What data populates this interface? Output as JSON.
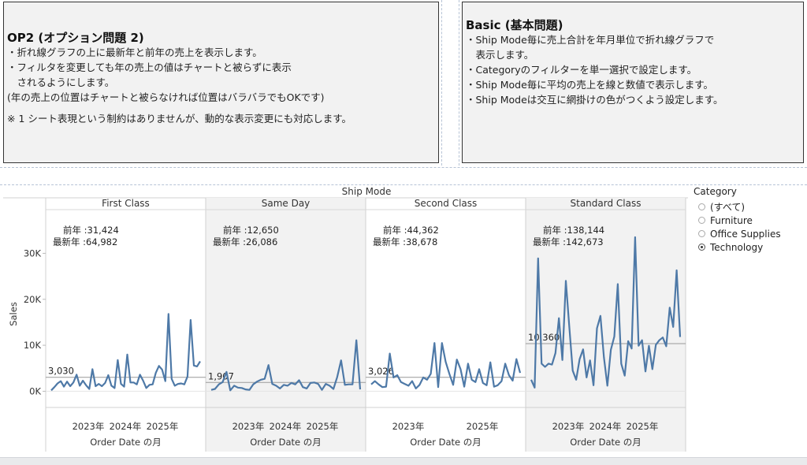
{
  "notes": {
    "op2": {
      "title": "OP2 (オプション問題 2)",
      "lines": [
        "・折れ線グラフの上に最新年と前年の売上を表示します。",
        "・フィルタを変更しても年の売上の値はチャートと被らずに表示",
        "　されるようにします。",
        "(年の売上の位置はチャートと被らなければ位置はバラバラでもOKです)"
      ],
      "footnote": "※ 1 シート表現という制約はありませんが、動的な表示変更にも対応します。"
    },
    "basic": {
      "title": "Basic (基本問題)",
      "lines": [
        "・Ship Mode毎に売上合計を年月単位で折れ線グラフで",
        "　表示します。",
        "・Categoryのフィルターを単一選択で設定します。",
        "・Ship Mode毎に平均の売上を線と数値で表示します。",
        "・Ship Modeは交互に網掛けの色がつくよう設定します。"
      ]
    }
  },
  "legend": {
    "title": "Category",
    "options": [
      {
        "label": "(すべて)",
        "selected": false
      },
      {
        "label": "Furniture",
        "selected": false
      },
      {
        "label": "Office Supplies",
        "selected": false
      },
      {
        "label": "Technology",
        "selected": true
      }
    ]
  },
  "chart_data": {
    "type": "line",
    "header": "Ship Mode",
    "ylabel": "Sales",
    "xlabel": "Order Date の月",
    "ylim": [
      -2500,
      39500
    ],
    "yticks": [
      0,
      10000,
      20000,
      30000
    ],
    "ytick_labels": [
      "0K",
      "10K",
      "20K",
      "30K"
    ],
    "line_color": "#4e79a7",
    "band_color": "#f2f2f2",
    "prev_label": "前年 :",
    "latest_label": "最新年 :",
    "panels": [
      {
        "name": "First Class",
        "shaded": false,
        "prev_year": "31,424",
        "latest_year": "64,982",
        "avg": 3030,
        "avg_label": "3,030",
        "xtick_labels": [
          "2023年",
          "2024年",
          "2025年"
        ],
        "values": [
          200,
          900,
          1700,
          2200,
          1000,
          2100,
          1100,
          1900,
          3600,
          1200,
          2300,
          1300,
          500,
          4800,
          1100,
          1600,
          1100,
          1800,
          3500,
          1200,
          700,
          6800,
          1600,
          1000,
          8000,
          1900,
          1900,
          1500,
          3600,
          2300,
          700,
          1400,
          1500,
          4000,
          5500,
          4700,
          2200,
          16800,
          2700,
          1200,
          1600,
          1700,
          1500,
          3200,
          15500,
          5600,
          5400,
          6500
        ]
      },
      {
        "name": "Same Day",
        "shaded": true,
        "prev_year": "12,650",
        "latest_year": "26,086",
        "avg": 1907,
        "avg_label": "1,907",
        "xtick_labels": [
          "2023年",
          "2024年",
          "2025年"
        ],
        "values": [
          300,
          500,
          1500,
          2000,
          4200,
          200,
          1200,
          800,
          700,
          400,
          300,
          1500,
          2100,
          2500,
          2700,
          5700,
          1600,
          1200,
          600,
          1400,
          1200,
          1800,
          1500,
          2400,
          900,
          600,
          1800,
          1900,
          1600,
          300,
          1600,
          1200,
          500,
          3100,
          6700,
          1400,
          1500,
          1500,
          11100,
          400
        ]
      },
      {
        "name": "Second Class",
        "shaded": false,
        "prev_year": "44,362",
        "latest_year": "38,678",
        "avg": 3026,
        "avg_label": "3,026",
        "xtick_labels": [
          "2023年",
          "2025年"
        ],
        "values": [
          1500,
          2200,
          1500,
          900,
          1000,
          8200,
          3000,
          3500,
          2000,
          1600,
          1200,
          2200,
          600,
          1400,
          3000,
          2500,
          3800,
          10500,
          900,
          10500,
          6400,
          3800,
          1400,
          6900,
          4800,
          1000,
          6000,
          2500,
          2000,
          4800,
          1800,
          1300,
          6300,
          1000,
          1300,
          2200,
          6000,
          3500,
          2300,
          7000,
          4000
        ]
      },
      {
        "name": "Standard Class",
        "shaded": true,
        "prev_year": "138,144",
        "latest_year": "142,673",
        "avg": 10360,
        "avg_label": "10,360",
        "xtick_labels": [
          "2023年",
          "2024年",
          "2025年"
        ],
        "values": [
          2500,
          800,
          28900,
          6000,
          5300,
          6000,
          5800,
          8300,
          15900,
          6800,
          24000,
          14200,
          4500,
          2500,
          7000,
          9100,
          3000,
          6700,
          1300,
          13700,
          16400,
          7400,
          1200,
          9000,
          11900,
          23300,
          6000,
          3400,
          10900,
          9300,
          33500,
          9900,
          11100,
          4300,
          9900,
          4800,
          10100,
          11100,
          11700,
          9800,
          18200,
          14000,
          26300,
          11800
        ]
      }
    ]
  }
}
